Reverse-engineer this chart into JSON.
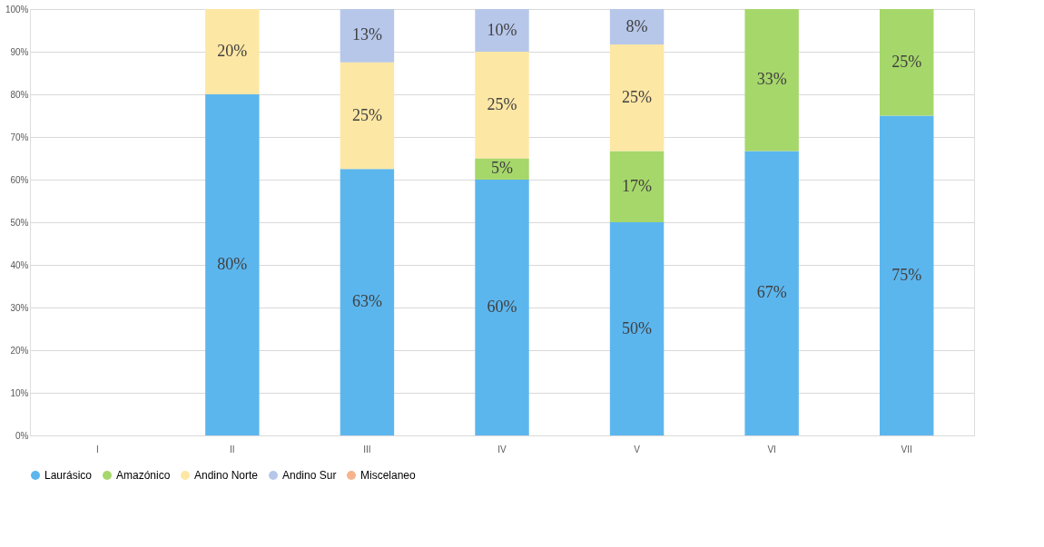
{
  "chart_data": {
    "type": "bar",
    "stacked": true,
    "categories": [
      "I",
      "II",
      "III",
      "IV",
      "V",
      "VI",
      "VII"
    ],
    "series": [
      {
        "name": "Laurásico",
        "color": "#5cb6ee",
        "values": [
          null,
          80,
          62.5,
          60,
          50,
          66.7,
          75
        ],
        "value_labels": [
          null,
          "80%",
          "63%",
          "60%",
          "50%",
          "67%",
          "75%"
        ]
      },
      {
        "name": "Amazónico",
        "color": "#a6d76a",
        "values": [
          null,
          null,
          null,
          5,
          16.7,
          33.3,
          25
        ],
        "value_labels": [
          null,
          null,
          null,
          "5%",
          "17%",
          "33%",
          "25%"
        ]
      },
      {
        "name": "Andino Norte",
        "color": "#fde7a4",
        "values": [
          null,
          20,
          25,
          25,
          25,
          null,
          null
        ],
        "value_labels": [
          null,
          "20%",
          "25%",
          "25%",
          "25%",
          null,
          null
        ]
      },
      {
        "name": "Andino Sur",
        "color": "#b7c7ea",
        "values": [
          null,
          null,
          12.5,
          10,
          8.3,
          null,
          null
        ],
        "value_labels": [
          null,
          null,
          "13%",
          "10%",
          "8%",
          null,
          null
        ]
      },
      {
        "name": "Miscelaneo",
        "color": "#f5b48c",
        "values": [
          null,
          null,
          null,
          null,
          null,
          null,
          null
        ]
      }
    ],
    "ylim": [
      0,
      100
    ],
    "yticks": [
      {
        "value": 0,
        "label": "0%"
      },
      {
        "value": 10,
        "label": "10%"
      },
      {
        "value": 20,
        "label": "20%"
      },
      {
        "value": 30,
        "label": "30%"
      },
      {
        "value": 40,
        "label": "40%"
      },
      {
        "value": 50,
        "label": "50%"
      },
      {
        "value": 60,
        "label": "60%"
      },
      {
        "value": 70,
        "label": "70%"
      },
      {
        "value": 80,
        "label": "80%"
      },
      {
        "value": 90,
        "label": "90%"
      },
      {
        "value": 100,
        "label": "100%"
      }
    ],
    "grid": "y",
    "legend": "bottom"
  }
}
